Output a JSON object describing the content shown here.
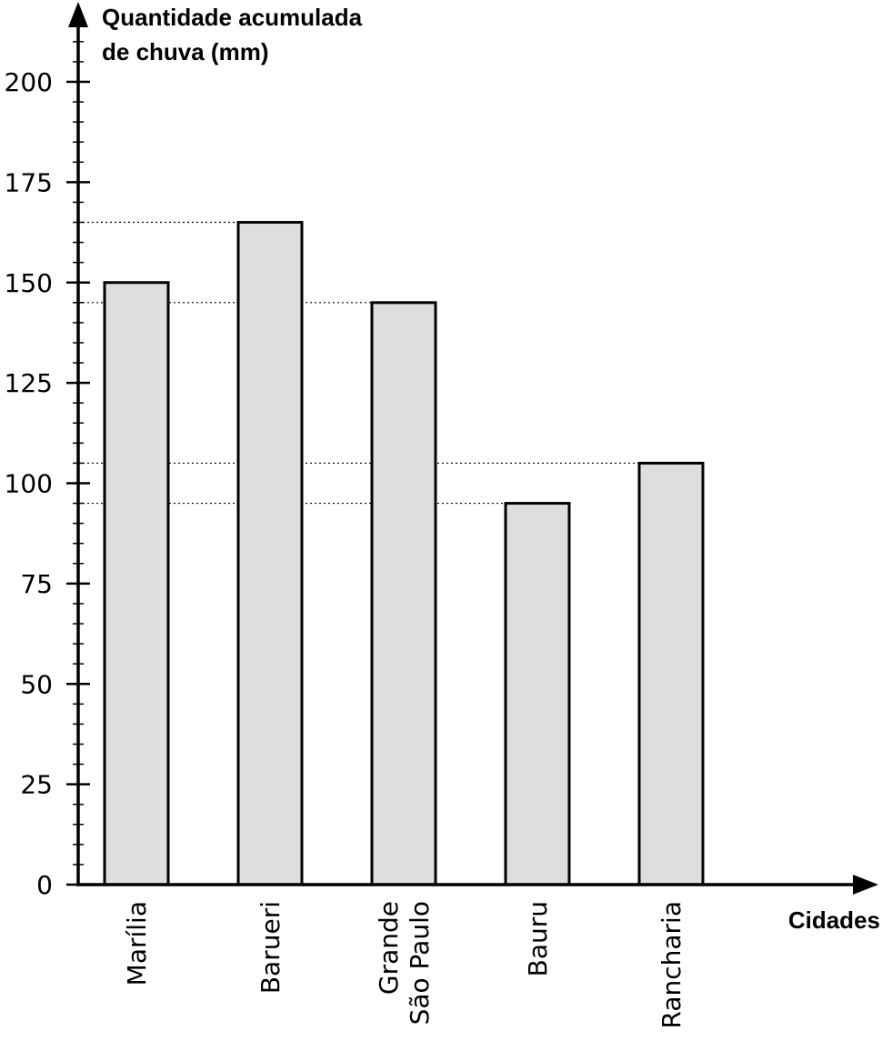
{
  "chart_data": {
    "type": "bar",
    "ylabel_lines": [
      "Quantidade acumulada",
      "de chuva (mm)"
    ],
    "xlabel": "Cidades",
    "categories": [
      {
        "lines": [
          "Marília"
        ]
      },
      {
        "lines": [
          "Barueri"
        ]
      },
      {
        "lines": [
          "Grande",
          "São Paulo"
        ]
      },
      {
        "lines": [
          "Bauru"
        ]
      },
      {
        "lines": [
          "Rancharia"
        ]
      }
    ],
    "values": [
      150,
      165,
      145,
      95,
      105
    ],
    "ylim": [
      0,
      200
    ],
    "major_ticks": [
      0,
      25,
      50,
      75,
      100,
      125,
      150,
      175,
      200
    ],
    "minor_tick_step": 5,
    "reference_lines": [
      165,
      145,
      105,
      95
    ],
    "bar_color": "#dedede",
    "bar_stroke": "#000000",
    "grid": false,
    "legend": "none"
  }
}
